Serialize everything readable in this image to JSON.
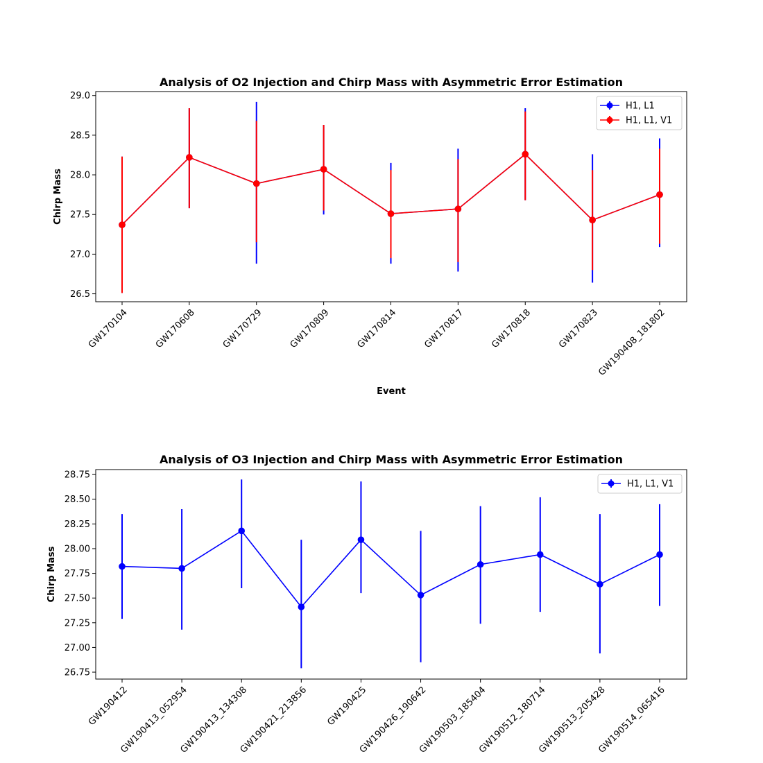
{
  "chart_data": [
    {
      "type": "line",
      "title": "Analysis of O2 Injection and Chirp Mass with Asymmetric Error Estimation",
      "xlabel": "Event",
      "ylabel": "Chirp Mass",
      "ylim": [
        26.4,
        29.05
      ],
      "yticks": [
        26.5,
        27.0,
        27.5,
        28.0,
        28.5,
        29.0
      ],
      "ytick_labels": [
        "26.5",
        "27.0",
        "27.5",
        "28.0",
        "28.5",
        "29.0"
      ],
      "categories": [
        "GW170104",
        "GW170608",
        "GW170729",
        "GW170809",
        "GW170814",
        "GW170817",
        "GW170818",
        "GW170823",
        "GW190408_181802"
      ],
      "legend_position": "top-right",
      "series": [
        {
          "name": "H1, L1",
          "color": "#0000ff",
          "values": [
            27.37,
            28.22,
            27.89,
            28.07,
            27.51,
            27.57,
            28.26,
            27.43,
            27.75
          ],
          "err_low": [
            26.51,
            27.58,
            26.88,
            27.5,
            26.88,
            26.78,
            27.68,
            26.64,
            27.09
          ],
          "err_high": [
            28.23,
            28.84,
            28.92,
            28.63,
            28.15,
            28.33,
            28.84,
            28.26,
            28.46
          ]
        },
        {
          "name": "H1, L1, V1",
          "color": "#ff0000",
          "values": [
            27.37,
            28.22,
            27.89,
            28.07,
            27.51,
            27.57,
            28.26,
            27.43,
            27.75
          ],
          "err_low": [
            26.51,
            27.58,
            27.15,
            27.55,
            26.95,
            26.9,
            27.68,
            26.8,
            27.13
          ],
          "err_high": [
            28.23,
            28.84,
            28.68,
            28.63,
            28.06,
            28.2,
            28.8,
            28.06,
            28.33
          ]
        }
      ]
    },
    {
      "type": "line",
      "title": "Analysis of O3 Injection and Chirp Mass with Asymmetric Error Estimation",
      "xlabel": "",
      "ylabel": "Chirp Mass",
      "ylim": [
        26.68,
        28.8
      ],
      "yticks": [
        26.75,
        27.0,
        27.25,
        27.5,
        27.75,
        28.0,
        28.25,
        28.5,
        28.75
      ],
      "ytick_labels": [
        "26.75",
        "27.00",
        "27.25",
        "27.50",
        "27.75",
        "28.00",
        "28.25",
        "28.50",
        "28.75"
      ],
      "categories": [
        "GW190412",
        "GW190413_052954",
        "GW190413_134308",
        "GW190421_213856",
        "GW190425",
        "GW190426_190642",
        "GW190503_185404",
        "GW190512_180714",
        "GW190513_205428",
        "GW190514_065416"
      ],
      "legend_position": "top-right",
      "series": [
        {
          "name": "H1, L1, V1",
          "color": "#0000ff",
          "values": [
            27.82,
            27.8,
            28.18,
            27.41,
            28.09,
            27.53,
            27.84,
            27.94,
            27.64,
            27.94
          ],
          "err_low": [
            27.29,
            27.18,
            27.6,
            26.79,
            27.55,
            26.85,
            27.24,
            27.36,
            26.94,
            27.42
          ],
          "err_high": [
            28.35,
            28.4,
            28.7,
            28.09,
            28.68,
            28.18,
            28.43,
            28.52,
            28.35,
            28.45
          ]
        }
      ]
    }
  ]
}
